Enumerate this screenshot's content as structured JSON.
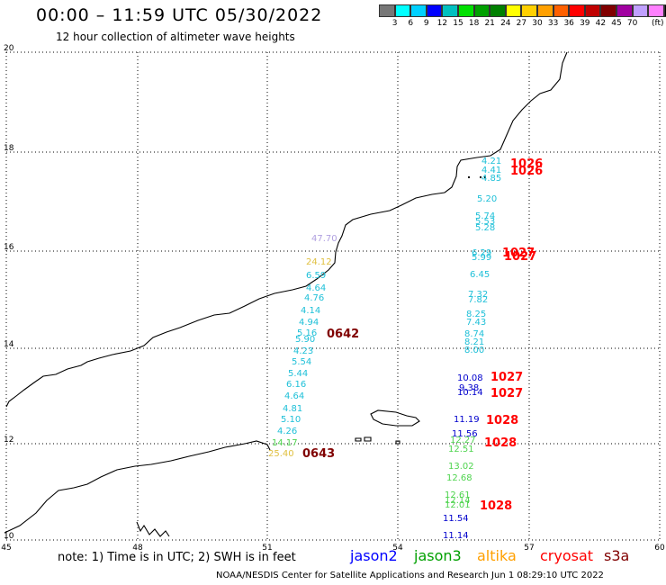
{
  "header": {
    "title": "00:00 – 11:59 UTC 05/30/2022",
    "subtitle": "12 hour collection of altimeter wave heights"
  },
  "colorbar": {
    "colors": [
      "#777777",
      "#00ffff",
      "#00d0ff",
      "#0000ff",
      "#00c0c0",
      "#00e000",
      "#00a000",
      "#008000",
      "#ffff00",
      "#ffd000",
      "#ffa000",
      "#ff6000",
      "#ff0000",
      "#c00000",
      "#800000",
      "#a000a0",
      "#c0a0ff",
      "#ff80ff",
      "#000000"
    ],
    "labels": [
      "3",
      "6",
      "9",
      "12",
      "15",
      "18",
      "21",
      "24",
      "27",
      "30",
      "33",
      "36",
      "39",
      "42",
      "45",
      "70",
      "(ft)"
    ]
  },
  "axes": {
    "lon_ticks": [
      "45",
      "48",
      "51",
      "54",
      "57",
      "60"
    ],
    "lat_ticks": [
      "20",
      "18",
      "16",
      "14",
      "12",
      "10"
    ]
  },
  "points": {
    "eastern_track": [
      {
        "t": "4.21",
        "c": "#1fc0d8"
      },
      {
        "t": "4.41",
        "c": "#1fc0d8"
      },
      {
        "t": "4.85",
        "c": "#1fc0d8"
      },
      {
        "t": "5.20",
        "c": "#1fc0d8"
      },
      {
        "t": "5.74",
        "c": "#1fc0d8"
      },
      {
        "t": "5.53",
        "c": "#1fc0d8"
      },
      {
        "t": "5.28",
        "c": "#1fc0d8"
      },
      {
        "t": "6.29",
        "c": "#1fc0d8"
      },
      {
        "t": "5.99",
        "c": "#1fc0d8"
      },
      {
        "t": "6.45",
        "c": "#1fc0d8"
      },
      {
        "t": "7.32",
        "c": "#1fc0d8"
      },
      {
        "t": "7.82",
        "c": "#1fc0d8"
      },
      {
        "t": "8.25",
        "c": "#1fc0d8"
      },
      {
        "t": "7.43",
        "c": "#1fc0d8"
      },
      {
        "t": "8.74",
        "c": "#1fc0d8"
      },
      {
        "t": "8.21",
        "c": "#1fc0d8"
      },
      {
        "t": "8.00",
        "c": "#1fc0d8"
      },
      {
        "t": "10.08",
        "c": "#0000cc"
      },
      {
        "t": "9.38",
        "c": "#0000cc"
      },
      {
        "t": "10.14",
        "c": "#0000cc"
      },
      {
        "t": "11.19",
        "c": "#0000cc"
      },
      {
        "t": "11.56",
        "c": "#0000cc"
      },
      {
        "t": "12.27",
        "c": "#4fd44f"
      },
      {
        "t": "12.51",
        "c": "#4fd44f"
      },
      {
        "t": "13.02",
        "c": "#4fd44f"
      },
      {
        "t": "12.68",
        "c": "#4fd44f"
      },
      {
        "t": "12.61",
        "c": "#4fd44f"
      },
      {
        "t": "12.14",
        "c": "#4fd44f"
      },
      {
        "t": "12.01",
        "c": "#4fd44f"
      },
      {
        "t": "11.54",
        "c": "#0000cc"
      },
      {
        "t": "11.14",
        "c": "#0000cc"
      }
    ],
    "western_track": [
      {
        "t": "47.70",
        "c": "#b0a0e0"
      },
      {
        "t": "24.12",
        "c": "#e0c040"
      },
      {
        "t": "6.59",
        "c": "#1fc0d8"
      },
      {
        "t": "4.64",
        "c": "#1fc0d8"
      },
      {
        "t": "4.76",
        "c": "#1fc0d8"
      },
      {
        "t": "4.14",
        "c": "#1fc0d8"
      },
      {
        "t": "4.94",
        "c": "#1fc0d8"
      },
      {
        "t": "5.16",
        "c": "#1fc0d8"
      },
      {
        "t": "5.90",
        "c": "#1fc0d8"
      },
      {
        "t": "4.23",
        "c": "#1fc0d8"
      },
      {
        "t": "5.54",
        "c": "#1fc0d8"
      },
      {
        "t": "5.44",
        "c": "#1fc0d8"
      },
      {
        "t": "6.16",
        "c": "#1fc0d8"
      },
      {
        "t": "4.64",
        "c": "#1fc0d8"
      },
      {
        "t": "4.81",
        "c": "#1fc0d8"
      },
      {
        "t": "5.10",
        "c": "#1fc0d8"
      },
      {
        "t": "4.26",
        "c": "#1fc0d8"
      },
      {
        "t": "14.17",
        "c": "#4fd44f"
      },
      {
        "t": "25.40",
        "c": "#e0c040"
      }
    ],
    "times": [
      {
        "t": "1026",
        "c": "#ff0000"
      },
      {
        "t": "1026",
        "c": "#ff0000"
      },
      {
        "t": "1027",
        "c": "#ff0000"
      },
      {
        "t": "1027",
        "c": "#ff0000"
      },
      {
        "t": "0642",
        "c": "#800000"
      },
      {
        "t": "1027",
        "c": "#ff0000"
      },
      {
        "t": "1027",
        "c": "#ff0000"
      },
      {
        "t": "1028",
        "c": "#ff0000"
      },
      {
        "t": "1028",
        "c": "#ff0000"
      },
      {
        "t": "0643",
        "c": "#800000"
      },
      {
        "t": "1028",
        "c": "#ff0000"
      }
    ]
  },
  "footer": {
    "note": "note:  1) Time is in UTC;  2) SWH is in feet",
    "satellites": [
      {
        "name": "jason2",
        "color": "#0000ff"
      },
      {
        "name": "jason3",
        "color": "#00a000"
      },
      {
        "name": "altika",
        "color": "#ffa000"
      },
      {
        "name": "cryosat",
        "color": "#ff0000"
      },
      {
        "name": "s3a",
        "color": "#800000"
      }
    ],
    "credit": "NOAA/NESDIS Center for Satellite Applications and Research    Jun  1 08:29:10 UTC 2022"
  }
}
